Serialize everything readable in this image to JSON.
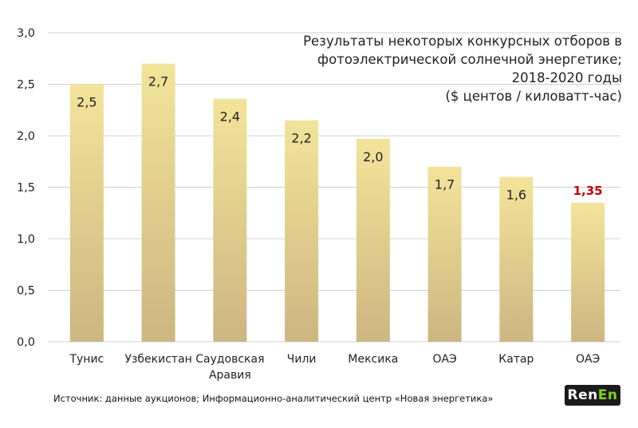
{
  "chart_data": {
    "type": "bar",
    "title_lines": [
      "Результаты некоторых конкурсных отборов в",
      "фотоэлектрической солнечной энергетике;",
      "2018-2020 годы",
      "($ центов / киловатт-час)"
    ],
    "categories": [
      "Тунис",
      "Узбекистан",
      "Саудовская Аравия",
      "Чили",
      "Мексика",
      "ОАЭ",
      "Катар",
      "ОАЭ"
    ],
    "values": [
      2.5,
      2.7,
      2.36,
      2.15,
      1.97,
      1.7,
      1.6,
      1.35
    ],
    "value_labels": [
      "2,5",
      "2,7",
      "2,4",
      "2,2",
      "2,0",
      "1,7",
      "1,6",
      "1,35"
    ],
    "highlight_index": 7,
    "ylim": [
      0,
      3.0
    ],
    "yticks": [
      0,
      0.5,
      1.0,
      1.5,
      2.0,
      2.5,
      3.0
    ],
    "ytick_labels": [
      "0,0",
      "0,5",
      "1,0",
      "1,5",
      "2,0",
      "2,5",
      "3,0"
    ],
    "xlabel": "",
    "ylabel": "",
    "grid": true,
    "colors": {
      "bar_top": "#f3e49a",
      "bar_bottom": "#cdb681",
      "grid": "#d0d0d0",
      "highlight_label": "#c00000",
      "text": "#222222"
    }
  },
  "source": "Источник: данные аукционов; Информационно-аналитический центр «Новая энергетика»",
  "logo": {
    "part1": "Ren",
    "part2": "En"
  }
}
